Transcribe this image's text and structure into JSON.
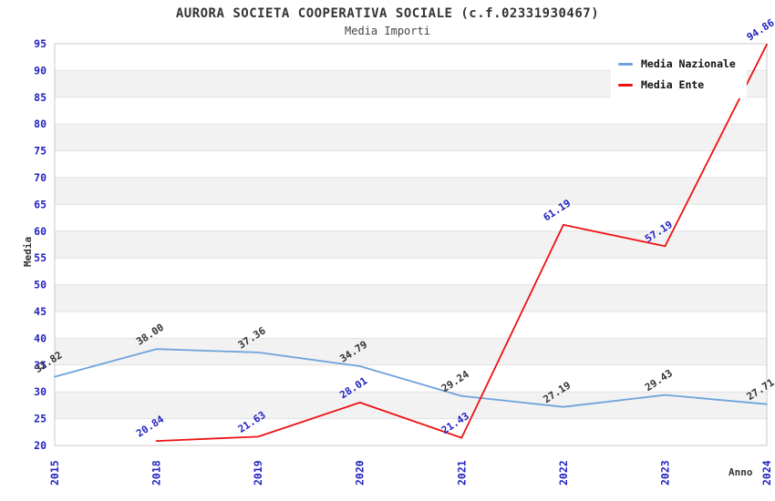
{
  "header": {
    "title": "AURORA SOCIETA COOPERATIVA SOCIALE (c.f.02331930467)",
    "subtitle": "Media Importi"
  },
  "colors": {
    "nazionale_line": "#6fa3dc",
    "ente_line": "#ee1111",
    "tick_label_blue": "#2222c0",
    "nazionale_point_label": "#333333",
    "ente_point_label": "#2222c0",
    "band_gray": "#f2f2f2",
    "band_white": "#ffffff",
    "gridline": "#e2e2e2",
    "plot_border": "#c8c8c8",
    "title_text": "#333333"
  },
  "chart_data": {
    "type": "line",
    "title": "AURORA SOCIETA COOPERATIVA SOCIALE (c.f.02331930467)",
    "subtitle": "Media Importi",
    "xlabel": "Anno",
    "ylabel": "Media",
    "categories": [
      "2015",
      "2018",
      "2019",
      "2020",
      "2021",
      "2022",
      "2023",
      "2024"
    ],
    "series": [
      {
        "name": "Media Nazionale",
        "color": "#6fa3dc",
        "label_color": "#333333",
        "values": [
          32.82,
          38.0,
          37.36,
          34.79,
          29.24,
          27.19,
          29.43,
          27.71
        ]
      },
      {
        "name": "Media Ente",
        "color": "#ee1111",
        "label_color": "#2222c0",
        "values": [
          null,
          20.84,
          21.63,
          28.01,
          21.43,
          61.19,
          57.19,
          94.86
        ]
      }
    ],
    "ylim": [
      20,
      95
    ],
    "ytick_step": 5,
    "grid": "horizontal-bands-alternating",
    "legend_position": "top-right",
    "value_labels": "two-decimals-rotated"
  }
}
